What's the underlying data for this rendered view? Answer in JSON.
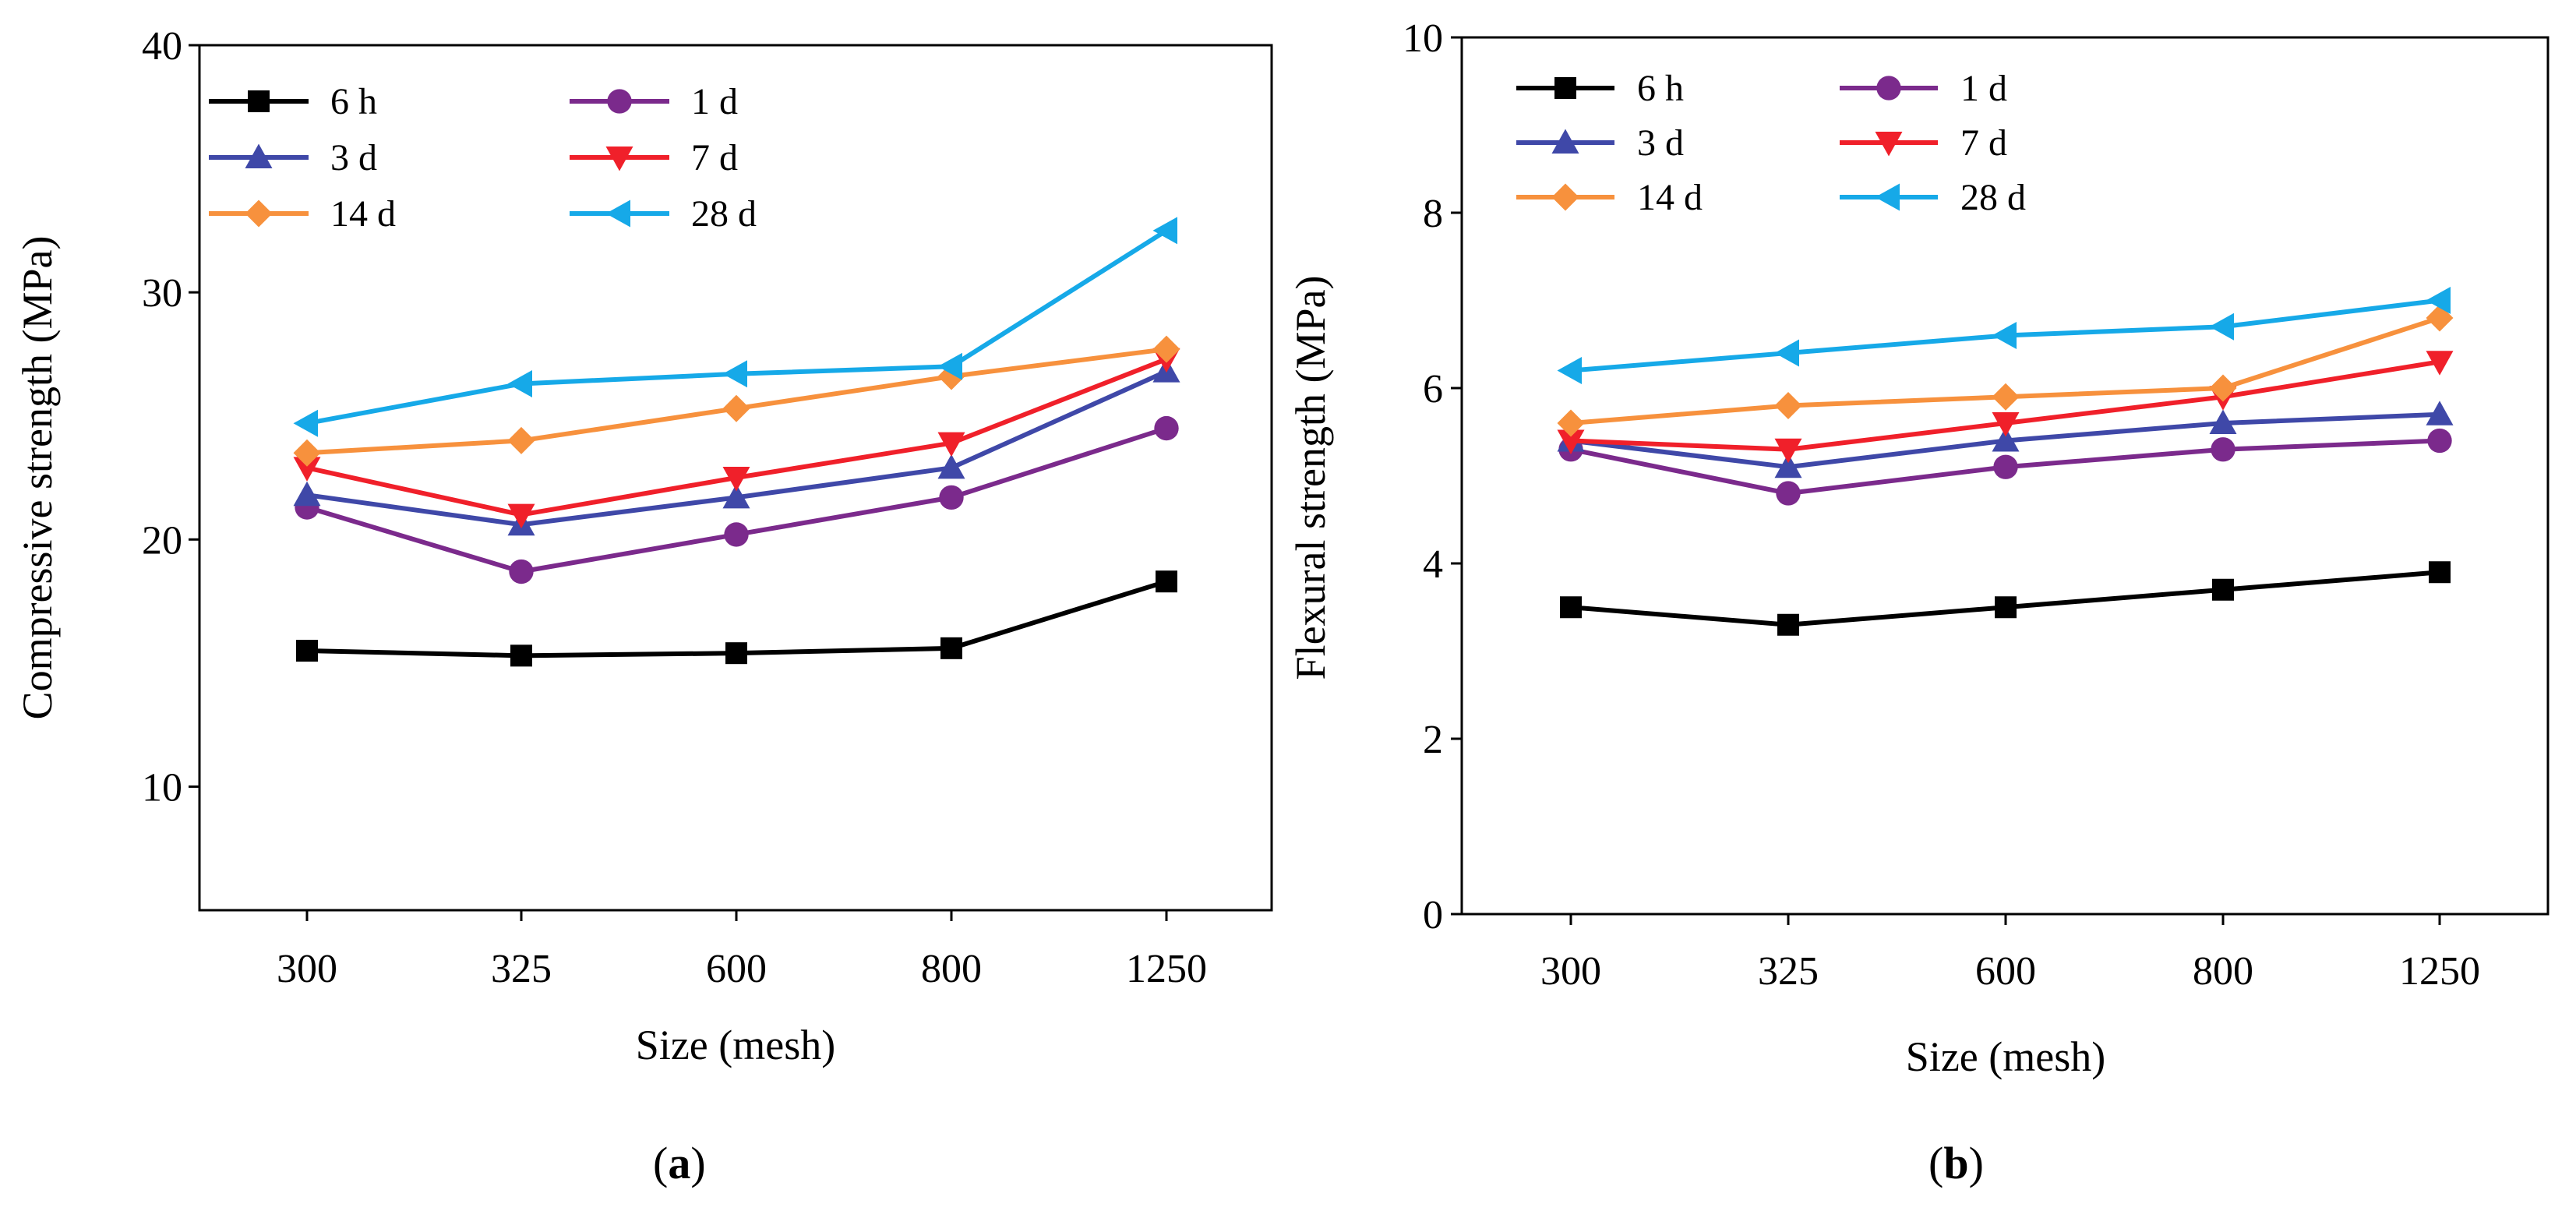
{
  "chart_data": [
    {
      "type": "line",
      "panel_label": "a",
      "categories": [
        "300",
        "325",
        "600",
        "800",
        "1250"
      ],
      "xlabel": "Size (mesh)",
      "ylabel": "Compressive strength (MPa)",
      "ylim": [
        5,
        40
      ],
      "yticks": [
        10,
        20,
        30,
        40
      ],
      "legend_position": "top-left",
      "series": [
        {
          "name": "6 h",
          "marker": "square",
          "color": "#000000",
          "values": [
            15.5,
            15.3,
            15.4,
            15.6,
            18.3
          ]
        },
        {
          "name": "1 d",
          "marker": "circle",
          "color": "#7B2A8C",
          "values": [
            21.3,
            18.7,
            20.2,
            21.7,
            24.5
          ]
        },
        {
          "name": "3 d",
          "marker": "triangle-up",
          "color": "#3F48A8",
          "values": [
            21.8,
            20.6,
            21.7,
            22.9,
            26.8
          ]
        },
        {
          "name": "7 d",
          "marker": "triangle-down",
          "color": "#F0202A",
          "values": [
            22.9,
            21.0,
            22.5,
            23.9,
            27.3
          ]
        },
        {
          "name": "14 d",
          "marker": "diamond",
          "color": "#F7913D",
          "values": [
            23.5,
            24.0,
            25.3,
            26.6,
            27.7
          ]
        },
        {
          "name": "28 d",
          "marker": "triangle-left",
          "color": "#16A9E8",
          "values": [
            24.7,
            26.3,
            26.7,
            27.0,
            32.5
          ]
        }
      ]
    },
    {
      "type": "line",
      "panel_label": "b",
      "categories": [
        "300",
        "325",
        "600",
        "800",
        "1250"
      ],
      "xlabel": "Size (mesh)",
      "ylabel": "Flexural strength (MPa)",
      "ylim": [
        0,
        10
      ],
      "yticks": [
        0,
        2,
        4,
        6,
        8,
        10
      ],
      "legend_position": "top-left",
      "series": [
        {
          "name": "6 h",
          "marker": "square",
          "color": "#000000",
          "values": [
            3.5,
            3.3,
            3.5,
            3.7,
            3.9
          ]
        },
        {
          "name": "1 d",
          "marker": "circle",
          "color": "#7B2A8C",
          "values": [
            5.3,
            4.8,
            5.1,
            5.3,
            5.4
          ]
        },
        {
          "name": "3 d",
          "marker": "triangle-up",
          "color": "#3F48A8",
          "values": [
            5.4,
            5.1,
            5.4,
            5.6,
            5.7
          ]
        },
        {
          "name": "7 d",
          "marker": "triangle-down",
          "color": "#F0202A",
          "values": [
            5.4,
            5.3,
            5.6,
            5.9,
            6.3
          ]
        },
        {
          "name": "14 d",
          "marker": "diamond",
          "color": "#F7913D",
          "values": [
            5.6,
            5.8,
            5.9,
            6.0,
            6.8
          ]
        },
        {
          "name": "28 d",
          "marker": "triangle-left",
          "color": "#16A9E8",
          "values": [
            6.2,
            6.4,
            6.6,
            6.7,
            7.0
          ]
        }
      ]
    }
  ]
}
